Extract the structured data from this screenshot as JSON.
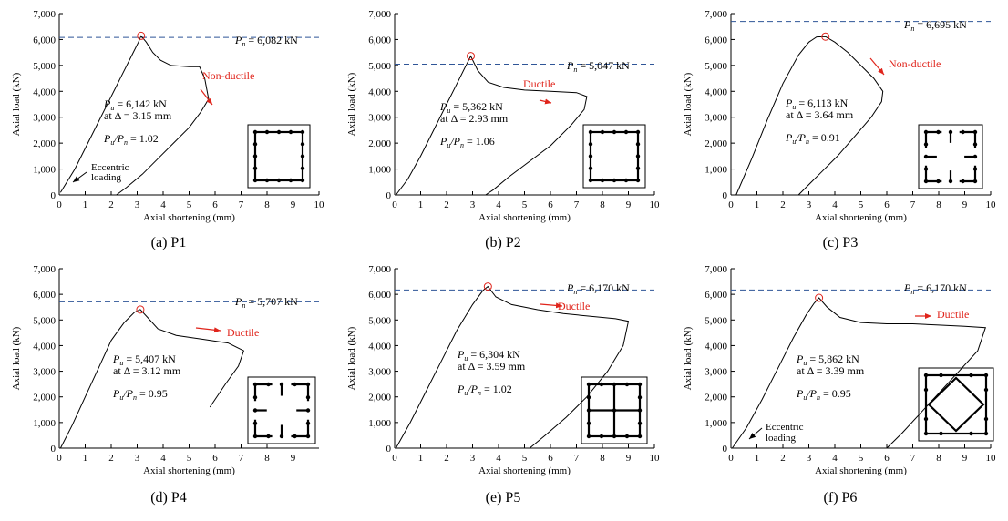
{
  "colors": {
    "curve": "#000000",
    "pn_line": "#2f5597",
    "accent": "#e0241b",
    "peak_marker": "#e0241b"
  },
  "chart_data": [
    {
      "type": "line",
      "id": "P1",
      "caption": "(a) P1",
      "xlabel": "Axial shortening (mm)",
      "ylabel": "Axial load (kN)",
      "xlim": [
        0,
        10
      ],
      "ylim": [
        0,
        7000
      ],
      "xticks": [
        "0",
        "1",
        "2",
        "3",
        "4",
        "5",
        "6",
        "7",
        "8",
        "9",
        "10"
      ],
      "yticks": [
        "0",
        "1,000",
        "2,000",
        "3,000",
        "4,000",
        "5,000",
        "6,000",
        "7,000"
      ],
      "pn_value": 6082,
      "pn_label": "= 6,082 kN",
      "peak": [
        3.15,
        6142
      ],
      "pu_label": "= 6,142 kN",
      "delta_label": "at Δ = 3.15 mm",
      "ratio_label": "= 1.02",
      "ductility": "Non-ductile",
      "extra_label": [
        "Eccentric",
        "loading"
      ],
      "x": [
        0.05,
        0.6,
        1.2,
        1.8,
        2.4,
        2.8,
        3.05,
        3.15,
        3.35,
        3.6,
        3.9,
        4.3,
        5.0,
        5.4,
        5.6,
        5.75,
        5.45,
        5.0,
        4.4,
        3.8,
        3.2,
        2.6,
        2.2
      ],
      "y": [
        100,
        1000,
        2200,
        3400,
        4600,
        5400,
        5900,
        6142,
        5900,
        5500,
        5200,
        5000,
        4950,
        4950,
        4500,
        3700,
        3200,
        2600,
        2000,
        1400,
        800,
        300,
        0
      ]
    },
    {
      "type": "line",
      "id": "P2",
      "caption": "(b) P2",
      "xlabel": "Axial shortening (mm)",
      "ylabel": "Axial load (kN)",
      "xlim": [
        0,
        10
      ],
      "ylim": [
        0,
        7000
      ],
      "xticks": [
        "0",
        "1",
        "2",
        "3",
        "4",
        "5",
        "6",
        "7",
        "8",
        "9",
        "10"
      ],
      "yticks": [
        "0",
        "1,000",
        "2,000",
        "3,000",
        "4,000",
        "5,000",
        "6,000",
        "7,000"
      ],
      "pn_value": 5047,
      "pn_label": "= 5,047 kN",
      "peak": [
        2.93,
        5362
      ],
      "pu_label": "= 5,362 kN",
      "delta_label": "at Δ = 2.93 mm",
      "ratio_label": "= 1.06",
      "ductility": "Ductile",
      "extra_label": [],
      "x": [
        0.05,
        0.5,
        1.0,
        1.5,
        2.0,
        2.4,
        2.7,
        2.93,
        3.2,
        3.6,
        4.2,
        5.0,
        6.0,
        7.0,
        7.4,
        7.3,
        6.8,
        6.0,
        5.2,
        4.4,
        3.8,
        3.5
      ],
      "y": [
        0,
        600,
        1500,
        2500,
        3500,
        4300,
        4900,
        5362,
        4800,
        4350,
        4150,
        4050,
        4000,
        3950,
        3800,
        3300,
        2700,
        1900,
        1300,
        700,
        200,
        0
      ]
    },
    {
      "type": "line",
      "id": "P3",
      "caption": "(c) P3",
      "xlabel": "Axial shortening (mm)",
      "ylabel": "Axial load (kN)",
      "xlim": [
        0,
        10
      ],
      "ylim": [
        0,
        7000
      ],
      "xticks": [
        "0",
        "1",
        "2",
        "3",
        "4",
        "5",
        "6",
        "7",
        "8",
        "9",
        "10"
      ],
      "yticks": [
        "0",
        "1,000",
        "2,000",
        "3,000",
        "4,000",
        "5,000",
        "6,000",
        "7,000"
      ],
      "pn_value": 6695,
      "pn_label": "= 6,695 kN",
      "peak": [
        3.64,
        6113
      ],
      "pu_label": "= 6,113 kN",
      "delta_label": "at Δ = 3.64 mm",
      "ratio_label": "= 0.91",
      "ductility": "Non-ductile",
      "extra_label": [],
      "x": [
        0.2,
        0.8,
        1.4,
        2.0,
        2.6,
        3.0,
        3.3,
        3.64,
        4.0,
        4.5,
        5.0,
        5.5,
        5.85,
        5.8,
        5.4,
        4.8,
        4.1,
        3.4,
        2.9,
        2.6
      ],
      "y": [
        0,
        1400,
        2900,
        4300,
        5400,
        5900,
        6100,
        6113,
        5900,
        5500,
        5000,
        4500,
        4000,
        3600,
        3000,
        2300,
        1500,
        800,
        300,
        0
      ]
    },
    {
      "type": "line",
      "id": "P4",
      "caption": "(d) P4",
      "xlabel": "Axial shortening (mm)",
      "ylabel": "Axial load (kN)",
      "xlim": [
        0,
        10
      ],
      "ylim": [
        0,
        7000
      ],
      "xticks": [
        "0",
        "1",
        "2",
        "3",
        "4",
        "5",
        "6",
        "7",
        "8",
        "9"
      ],
      "yticks": [
        "0",
        "1,000",
        "2,000",
        "3,000",
        "4,000",
        "5,000",
        "6,000",
        "7,000"
      ],
      "pn_value": 5707,
      "pn_label": "= 5,707 kN",
      "peak": [
        3.12,
        5407
      ],
      "pu_label": "= 5,407 kN",
      "delta_label": "at Δ = 3.12 mm",
      "ratio_label": "= 0.95",
      "ductility": "Ductile",
      "extra_label": [],
      "x": [
        0.05,
        0.5,
        1.0,
        1.5,
        2.0,
        2.5,
        2.9,
        3.12,
        3.4,
        3.8,
        4.5,
        5.5,
        6.5,
        7.1,
        6.9,
        6.4,
        5.8
      ],
      "y": [
        0,
        900,
        2000,
        3100,
        4200,
        4900,
        5300,
        5407,
        5100,
        4650,
        4400,
        4250,
        4100,
        3800,
        3200,
        2500,
        1600
      ]
    },
    {
      "type": "line",
      "id": "P5",
      "caption": "(e) P5",
      "xlabel": "Axial shortening (mm)",
      "ylabel": "Axial load (kN)",
      "xlim": [
        0,
        10
      ],
      "ylim": [
        0,
        7000
      ],
      "xticks": [
        "0",
        "1",
        "2",
        "3",
        "4",
        "5",
        "6",
        "7",
        "8",
        "9",
        "10"
      ],
      "yticks": [
        "0",
        "1,000",
        "2,000",
        "3,000",
        "4,000",
        "5,000",
        "6,000",
        "7,000"
      ],
      "pn_value": 6170,
      "pn_label": "= 6,170 kN",
      "peak": [
        3.59,
        6304
      ],
      "pu_label": "= 6,304 kN",
      "delta_label": "at Δ = 3.59 mm",
      "ratio_label": "= 1.02",
      "ductility": "Ductile",
      "extra_label": [],
      "x": [
        0.05,
        0.6,
        1.2,
        1.8,
        2.4,
        3.0,
        3.4,
        3.59,
        3.9,
        4.5,
        5.5,
        6.5,
        7.5,
        8.5,
        9.0,
        8.8,
        8.2,
        7.4,
        6.6,
        5.8,
        5.2
      ],
      "y": [
        0,
        1000,
        2200,
        3400,
        4600,
        5600,
        6150,
        6304,
        5900,
        5600,
        5400,
        5250,
        5150,
        5050,
        4950,
        4000,
        3000,
        2000,
        1200,
        500,
        0
      ]
    },
    {
      "type": "line",
      "id": "P6",
      "caption": "(f) P6",
      "xlabel": "Axial shortening (mm)",
      "ylabel": "Axial load (kN)",
      "xlim": [
        0,
        10
      ],
      "ylim": [
        0,
        7000
      ],
      "xticks": [
        "0",
        "1",
        "2",
        "3",
        "4",
        "5",
        "6",
        "7",
        "8",
        "9",
        "10"
      ],
      "yticks": [
        "0",
        "1,000",
        "2,000",
        "3,000",
        "4,000",
        "5,000",
        "6,000",
        "7,000"
      ],
      "pn_value": 6170,
      "pn_label": "= 6,170 kN",
      "peak": [
        3.39,
        5862
      ],
      "pu_label": "= 5,862 kN",
      "delta_label": "at Δ = 3.39 mm",
      "ratio_label": "= 0.95",
      "ductility": "Ductile",
      "extra_label": [
        "Eccentric",
        "loading"
      ],
      "x": [
        0.05,
        0.6,
        1.2,
        1.8,
        2.4,
        2.9,
        3.2,
        3.39,
        3.7,
        4.2,
        5.0,
        6.0,
        7.0,
        8.0,
        9.0,
        9.8,
        9.5,
        8.6,
        7.6,
        6.6,
        6.0
      ],
      "y": [
        0,
        800,
        1900,
        3100,
        4300,
        5200,
        5650,
        5862,
        5500,
        5100,
        4900,
        4850,
        4850,
        4800,
        4750,
        4700,
        3800,
        2800,
        1700,
        600,
        0
      ]
    }
  ]
}
